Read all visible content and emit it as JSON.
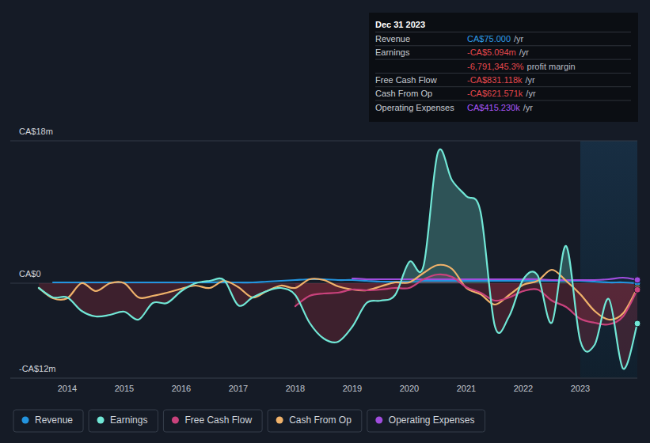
{
  "chart_data": {
    "type": "line",
    "x": [
      2013.5,
      2013.75,
      2014,
      2014.25,
      2014.5,
      2014.75,
      2015,
      2015.25,
      2015.5,
      2015.75,
      2016,
      2016.25,
      2016.5,
      2016.75,
      2017,
      2017.25,
      2017.5,
      2017.75,
      2018,
      2018.25,
      2018.5,
      2018.75,
      2019,
      2019.25,
      2019.5,
      2019.75,
      2020,
      2020.25,
      2020.5,
      2020.75,
      2021,
      2021.25,
      2021.5,
      2021.75,
      2022,
      2022.25,
      2022.5,
      2022.75,
      2023,
      2023.25,
      2023.5,
      2023.75,
      2024
    ],
    "xlim": [
      2013,
      2024
    ],
    "xticks": [
      2014,
      2015,
      2016,
      2017,
      2018,
      2019,
      2020,
      2021,
      2022,
      2023
    ],
    "ylim": [
      -12,
      18
    ],
    "yticks": [
      {
        "value": -12,
        "label": "-CA$12m"
      },
      {
        "value": 0,
        "label": "CA$0"
      },
      {
        "value": 18,
        "label": "CA$18m"
      }
    ],
    "grid": true,
    "legend": "bottom-left",
    "series": [
      {
        "name": "Revenue",
        "color": "#2394df",
        "values": [
          null,
          0.1,
          0.1,
          0.1,
          0.1,
          0.1,
          0.1,
          0.1,
          0.1,
          0.1,
          0.1,
          0.1,
          0.1,
          0.1,
          0.1,
          0.1,
          0.2,
          0.3,
          0.4,
          0.5,
          0.5,
          0.4,
          0.4,
          0.3,
          0.2,
          0.2,
          0.2,
          0.3,
          0.3,
          0.3,
          0.3,
          0.3,
          0.3,
          0.3,
          0.3,
          0.3,
          0.3,
          0.3,
          0.3,
          0.2,
          0.1,
          0.1,
          7.5e-05
        ]
      },
      {
        "name": "Earnings",
        "color": "#71e7d6",
        "values": [
          -0.6,
          -1.8,
          -1.8,
          -3.5,
          -4.2,
          -4.0,
          -3.6,
          -4.6,
          -2.5,
          -2.5,
          -1.0,
          0.0,
          0.3,
          0.4,
          -2.8,
          -1.8,
          -1.0,
          -0.6,
          -1.5,
          -5.0,
          -7.0,
          -7.4,
          -5.5,
          -2.5,
          -2.2,
          -1.5,
          2.7,
          2.2,
          16.5,
          13.0,
          11.0,
          9.0,
          -5.4,
          -4.2,
          0.5,
          1.0,
          -5.0,
          4.7,
          -7.3,
          -7.8,
          -2.0,
          -10.8,
          -5.094
        ]
      },
      {
        "name": "Free Cash Flow",
        "color": "#c9427c",
        "values": [
          null,
          null,
          null,
          null,
          null,
          null,
          null,
          null,
          null,
          null,
          null,
          null,
          null,
          null,
          null,
          null,
          null,
          null,
          -2.9,
          -1.6,
          -1.3,
          -1.2,
          -0.8,
          -0.9,
          -0.8,
          -0.6,
          -0.6,
          0.5,
          1.1,
          0.8,
          -0.5,
          -1.2,
          -2.2,
          -1.8,
          -1.0,
          -0.8,
          -2.2,
          -3.0,
          -4.5,
          -5.0,
          -5.2,
          -4.2,
          -0.831
        ]
      },
      {
        "name": "Cash From Op",
        "color": "#f0b26a",
        "values": [
          -0.6,
          -1.9,
          -1.9,
          0.0,
          -1.0,
          0.0,
          0.0,
          -1.8,
          -1.6,
          -1.2,
          -0.7,
          -0.3,
          -0.6,
          0.3,
          -0.5,
          -1.8,
          -1.0,
          -0.3,
          -0.6,
          0.5,
          0.4,
          -0.4,
          -0.8,
          -0.9,
          -0.4,
          0.1,
          0.1,
          1.3,
          2.3,
          1.8,
          -0.6,
          -1.4,
          -2.7,
          -1.5,
          -0.2,
          0.3,
          1.7,
          0.3,
          -1.4,
          -3.5,
          -4.6,
          -3.8,
          -0.622
        ]
      },
      {
        "name": "Operating Expenses",
        "color": "#a04dde",
        "values": [
          null,
          null,
          null,
          null,
          null,
          null,
          null,
          null,
          null,
          null,
          null,
          null,
          null,
          null,
          null,
          null,
          null,
          null,
          null,
          null,
          null,
          null,
          0.6,
          0.5,
          0.5,
          0.5,
          0.5,
          0.5,
          0.5,
          0.5,
          0.5,
          0.5,
          0.5,
          0.5,
          0.5,
          0.5,
          0.4,
          0.4,
          0.4,
          0.4,
          0.5,
          0.7,
          0.41523
        ]
      }
    ]
  },
  "tooltip": {
    "date": "Dec 31 2023",
    "rows": [
      {
        "label": "Revenue",
        "value": "CA$75.000",
        "unit": "/yr",
        "color": "#2f9be6"
      },
      {
        "label": "Earnings",
        "value": "-CA$5.094m",
        "unit": "/yr",
        "color": "#e5484d"
      },
      {
        "value": "-6,791,345.3%",
        "unit": "profit margin",
        "color": "#e5484d"
      },
      {
        "label": "Free Cash Flow",
        "value": "-CA$831.118k",
        "unit": "/yr",
        "color": "#e5484d"
      },
      {
        "label": "Cash From Op",
        "value": "-CA$621.571k",
        "unit": "/yr",
        "color": "#e5484d"
      },
      {
        "label": "Operating Expenses",
        "value": "CA$415.230k",
        "unit": "/yr",
        "color": "#a855f7"
      }
    ]
  }
}
